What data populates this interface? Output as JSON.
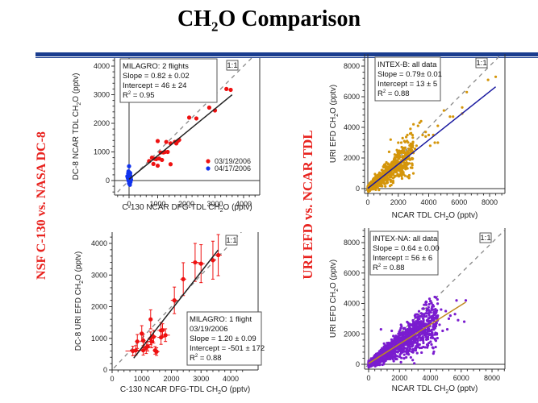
{
  "page": {
    "title_main": "CH",
    "title_sub": "2",
    "title_rest": "O Comparison",
    "side_left": "NSF C-130 vs. NASA DC-8",
    "side_right": "URI EFD vs. NCAR TDL"
  },
  "chart_data": [
    {
      "id": "c130-vs-dc8-tdl",
      "type": "scatter",
      "xlabel": "C-130 NCAR  DFG-TDL CH2O  (pptv)",
      "ylabel": "DC-8 NCAR TDL  CH2O  (pptv)",
      "xlim": [
        -500,
        4500
      ],
      "ylim": [
        -500,
        4400
      ],
      "xticks": [
        0,
        1000,
        2000,
        3000,
        4000
      ],
      "yticks": [
        0,
        1000,
        2000,
        3000,
        4000
      ],
      "one_to_one_label": "1:1",
      "annotation": [
        "MILAGRO: 2 flights",
        "Slope = 0.82 ± 0.02",
        "Intercept = 46 ± 24",
        "R2 = 0.95"
      ],
      "fit": {
        "slope": 0.82,
        "intercept": 46,
        "color": "#222222",
        "x_range": [
          0,
          3600
        ]
      },
      "legend": [
        {
          "label": "03/19/2006",
          "color": "#ee1111"
        },
        {
          "label": "04/17/2006",
          "color": "#1133ee"
        }
      ],
      "series": [
        {
          "name": "03/19/2006",
          "color": "#ee1111",
          "points": [
            [
              3400,
              3200
            ],
            [
              3550,
              3170
            ],
            [
              2800,
              2550
            ],
            [
              3000,
              2450
            ],
            [
              2100,
              2200
            ],
            [
              2350,
              2170
            ],
            [
              1000,
              1380
            ],
            [
              1300,
              1350
            ],
            [
              1450,
              1300
            ],
            [
              1650,
              1300
            ],
            [
              1700,
              1380
            ],
            [
              1750,
              1420
            ],
            [
              1600,
              1350
            ],
            [
              1250,
              1000
            ],
            [
              1350,
              1000
            ],
            [
              1100,
              980
            ],
            [
              1200,
              980
            ],
            [
              800,
              800
            ],
            [
              700,
              680
            ],
            [
              950,
              750
            ],
            [
              900,
              760
            ],
            [
              1050,
              770
            ],
            [
              850,
              580
            ],
            [
              1000,
              520
            ],
            [
              1150,
              720
            ],
            [
              1450,
              570
            ]
          ]
        },
        {
          "name": "04/17/2006",
          "color": "#1133ee",
          "points": [
            [
              0,
              500
            ],
            [
              -30,
              250
            ],
            [
              20,
              280
            ],
            [
              -10,
              200
            ],
            [
              40,
              180
            ],
            [
              -50,
              120
            ],
            [
              60,
              100
            ],
            [
              10,
              50
            ],
            [
              -20,
              0
            ],
            [
              50,
              -50
            ],
            [
              0,
              -100
            ],
            [
              30,
              -150
            ],
            [
              -40,
              80
            ],
            [
              70,
              30
            ],
            [
              -60,
              150
            ],
            [
              20,
              -30
            ],
            [
              0,
              220
            ],
            [
              40,
              260
            ],
            [
              -20,
              320
            ]
          ]
        }
      ]
    },
    {
      "id": "c130-vs-dc8-efd",
      "type": "scatter",
      "xlabel": "C-130 NCAR DFG-TDL CH2O  (pptv)",
      "ylabel": "DC-8  URI EFD CH2O  (pptv)",
      "xlim": [
        0,
        4500
      ],
      "ylim": [
        0,
        4300
      ],
      "xticks": [
        0,
        1000,
        2000,
        3000,
        4000
      ],
      "yticks": [
        0,
        1000,
        2000,
        3000,
        4000
      ],
      "one_to_one_label": "1:1",
      "annotation": [
        "MILAGRO: 1 flight",
        "03/19/2006",
        "Slope = 1.20 ± 0.09",
        "Intercept = -501 ± 172",
        "R2 = 0.88"
      ],
      "fit": {
        "slope": 1.2,
        "intercept": -501,
        "color": "#222222",
        "x_range": [
          730,
          3580
        ]
      },
      "series": [
        {
          "name": "03/19/2006",
          "color": "#ee1111",
          "points": [
            [
              3580,
              3630,
              120,
              650
            ],
            [
              3400,
              3470,
              100,
              600
            ],
            [
              3000,
              3360,
              120,
              600
            ],
            [
              2800,
              3400,
              130,
              600
            ],
            [
              2400,
              2870,
              100,
              520
            ],
            [
              2100,
              2200,
              120,
              420
            ],
            [
              1300,
              1600,
              60,
              300
            ],
            [
              1000,
              1150,
              80,
              250
            ],
            [
              850,
              900,
              80,
              220
            ],
            [
              1400,
              1050,
              100,
              200
            ],
            [
              1300,
              1000,
              100,
              200
            ],
            [
              1650,
              1250,
              120,
              250
            ],
            [
              1700,
              1260,
              80,
              200
            ],
            [
              1650,
              1030,
              120,
              220
            ],
            [
              1800,
              1100,
              150,
              200
            ],
            [
              1150,
              700,
              150,
              180
            ],
            [
              1050,
              620,
              100,
              150
            ],
            [
              800,
              620,
              200,
              150
            ],
            [
              700,
              600,
              250,
              150
            ],
            [
              1450,
              620,
              80,
              120
            ],
            [
              1500,
              580,
              100,
              120
            ],
            [
              1200,
              750,
              100,
              150
            ],
            [
              1330,
              900,
              100,
              200
            ],
            [
              1050,
              930,
              80,
              200
            ]
          ]
        }
      ]
    },
    {
      "id": "intex-b",
      "type": "scatter",
      "xlabel": "NCAR TDL CH2O  (pptv)",
      "ylabel": "URI EFD CH2O  (pptv)",
      "xlim": [
        -400,
        9000
      ],
      "ylim": [
        -400,
        9000
      ],
      "xticks": [
        0,
        2000,
        4000,
        6000,
        8000
      ],
      "yticks": [
        0,
        2000,
        4000,
        6000,
        8000
      ],
      "one_to_one_label": "1:1",
      "annotation": [
        "INTEX-B: all data",
        "Slope = 0.79± 0.01",
        "Intercept = 13 ± 5",
        "R2 = 0.88"
      ],
      "fit": {
        "slope": 0.79,
        "intercept": 13,
        "color": "#1a1aa0",
        "x_range": [
          0,
          8400
        ]
      },
      "series": [
        {
          "name": "INTEX-B",
          "color": "#d4950a",
          "cluster": {
            "n": 700,
            "x_max": 3000,
            "slope": 0.8,
            "spread": 0.35,
            "seed": 7
          },
          "points": [
            [
              8400,
              7300
            ],
            [
              7900,
              7100
            ],
            [
              6500,
              6300
            ],
            [
              6200,
              5300
            ],
            [
              6200,
              4900
            ],
            [
              5600,
              4700
            ],
            [
              5400,
              4700
            ],
            [
              5000,
              5100
            ],
            [
              4600,
              4100
            ],
            [
              4600,
              3000
            ],
            [
              4400,
              3000
            ],
            [
              4300,
              3500
            ],
            [
              4000,
              3500
            ],
            [
              3800,
              3400
            ],
            [
              3600,
              3500
            ],
            [
              3500,
              4400
            ],
            [
              3400,
              4300
            ],
            [
              3000,
              4200
            ],
            [
              3300,
              4100
            ],
            [
              2800,
              3900
            ],
            [
              2600,
              3500
            ],
            [
              2400,
              3100
            ],
            [
              1500,
              3200
            ],
            [
              2000,
              3000
            ],
            [
              2200,
              3000
            ],
            [
              3200,
              2800
            ],
            [
              3100,
              2600
            ],
            [
              2900,
              2500
            ],
            [
              2700,
              2600
            ],
            [
              4100,
              2800
            ],
            [
              1400,
              2400
            ],
            [
              3800,
              3700
            ]
          ]
        }
      ]
    },
    {
      "id": "intex-na",
      "type": "scatter",
      "xlabel": "NCAR  TDL CH2O  (pptv)",
      "ylabel": "URI EFD CH2O  (pptv)",
      "xlim": [
        -400,
        9000
      ],
      "ylim": [
        -400,
        8800
      ],
      "xticks": [
        0,
        2000,
        4000,
        6000,
        8000
      ],
      "yticks": [
        0,
        2000,
        4000,
        6000,
        8000
      ],
      "one_to_one_label": "1:1",
      "annotation": [
        "INTEX-NA: all data",
        "Slope = 0.64 ± 0.00",
        "Intercept = 56 ± 6",
        "R2 = 0.88"
      ],
      "fit": {
        "slope": 0.64,
        "intercept": 56,
        "color": "#c08a20",
        "x_range": [
          0,
          6300
        ]
      },
      "series": [
        {
          "name": "INTEX-NA",
          "color": "#7a1ccf",
          "cluster": {
            "n": 1400,
            "x_max": 4500,
            "slope": 0.64,
            "spread": 0.3,
            "seed": 13
          },
          "points": [
            [
              6300,
              4200
            ],
            [
              5700,
              4200
            ],
            [
              6200,
              2800
            ],
            [
              5800,
              2900
            ],
            [
              5300,
              3200
            ],
            [
              5600,
              3300
            ],
            [
              5000,
              3500
            ],
            [
              4700,
              3600
            ],
            [
              4600,
              2600
            ],
            [
              5200,
              3000
            ],
            [
              4300,
              3300
            ],
            [
              4100,
              3100
            ],
            [
              3600,
              3300
            ],
            [
              3200,
              3100
            ],
            [
              3000,
              3200
            ],
            [
              2600,
              2600
            ],
            [
              2100,
              2600
            ],
            [
              800,
              2300
            ],
            [
              5100,
              2300
            ],
            [
              4800,
              2200
            ],
            [
              1200,
              1400
            ],
            [
              1500,
              2200
            ]
          ]
        }
      ]
    }
  ]
}
